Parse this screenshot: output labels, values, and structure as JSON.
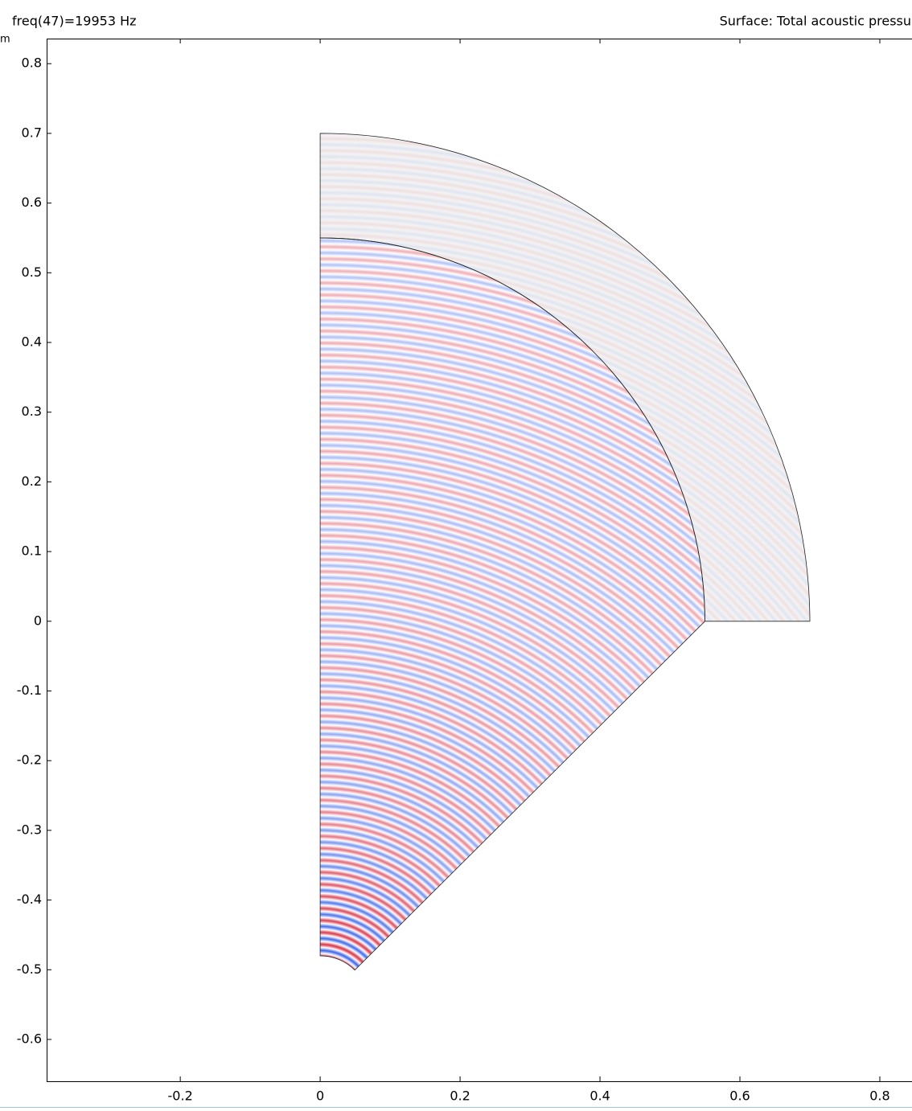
{
  "chart_data": {
    "type": "surface",
    "title": "freq(47)=19953 Hz",
    "subtitle": "Surface: Total acoustic pressu",
    "ylabel": "m",
    "xlim": [
      -0.391,
      0.846
    ],
    "ylim": [
      -0.66,
      0.836
    ],
    "xticks": [
      -0.2,
      0,
      0.2,
      0.4,
      0.6,
      0.8
    ],
    "yticks": [
      0.8,
      0.7,
      0.6,
      0.5,
      0.4,
      0.3,
      0.2,
      0.1,
      0,
      -0.1,
      -0.2,
      -0.3,
      -0.4,
      -0.5,
      -0.6
    ]
  }
}
